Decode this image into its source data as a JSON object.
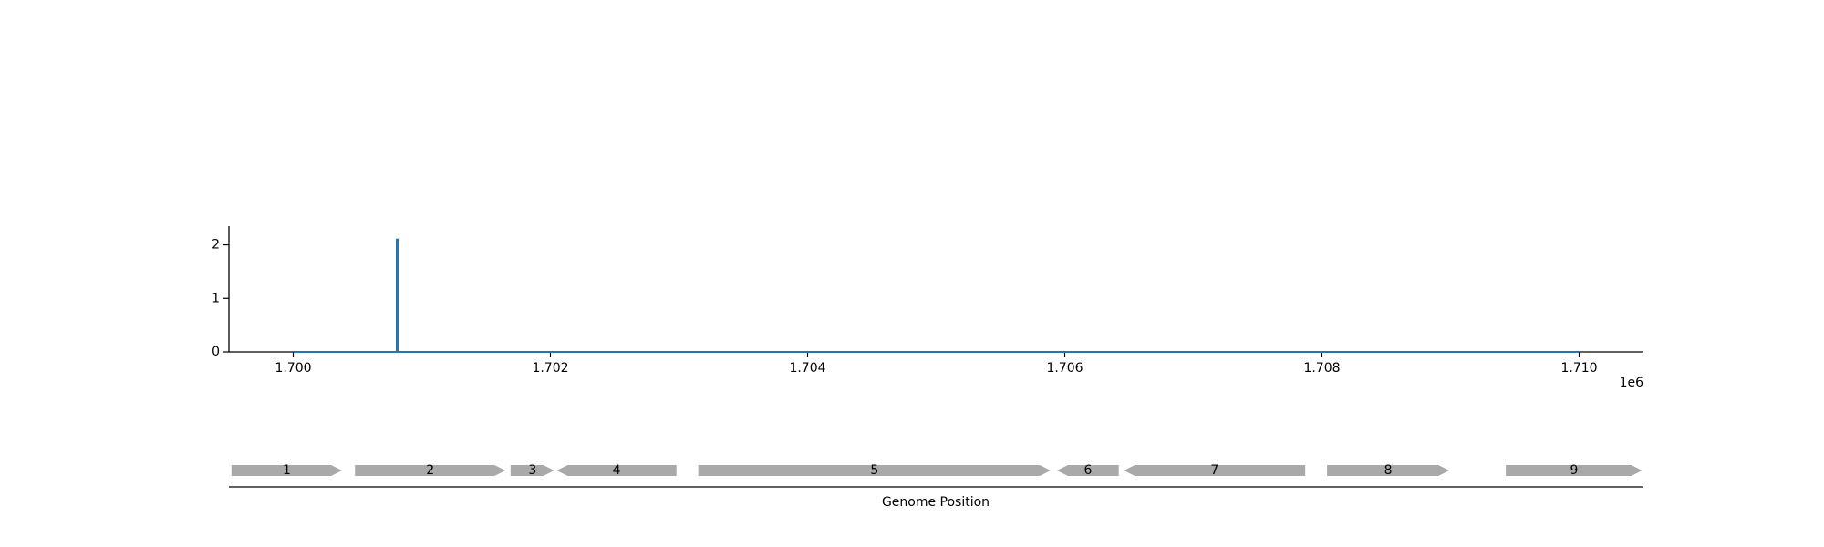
{
  "chart_data": [
    {
      "type": "line",
      "x_offset_label": "1e6",
      "xlim": [
        1699500,
        1710500
      ],
      "ylim": [
        0,
        2.35
      ],
      "x_ticks": [
        {
          "value": 1700000,
          "label": "1.700"
        },
        {
          "value": 1702000,
          "label": "1.702"
        },
        {
          "value": 1704000,
          "label": "1.704"
        },
        {
          "value": 1706000,
          "label": "1.706"
        },
        {
          "value": 1708000,
          "label": "1.708"
        },
        {
          "value": 1710000,
          "label": "1.710"
        }
      ],
      "y_ticks": [
        {
          "value": 0,
          "label": "0"
        },
        {
          "value": 1,
          "label": "1"
        },
        {
          "value": 2,
          "label": "2"
        }
      ],
      "series": [
        {
          "color": "#1f77b4",
          "x": [
            1700000,
            1700805,
            1700805,
            1700812,
            1700812,
            1710000
          ],
          "y": [
            0,
            0,
            2.1,
            2.1,
            0,
            0
          ]
        }
      ],
      "grid": false
    },
    {
      "type": "gene-track",
      "xlabel": "Genome Position",
      "xlim": [
        1699500,
        1710500
      ],
      "gene_color": "#a9a9a9",
      "genes": [
        {
          "label": "1",
          "start": 1699520,
          "end": 1700380,
          "strand": "+"
        },
        {
          "label": "2",
          "start": 1700480,
          "end": 1701650,
          "strand": "+"
        },
        {
          "label": "3",
          "start": 1701690,
          "end": 1702030,
          "strand": "+"
        },
        {
          "label": "4",
          "start": 1702050,
          "end": 1702980,
          "strand": "-"
        },
        {
          "label": "5",
          "start": 1703150,
          "end": 1705890,
          "strand": "+"
        },
        {
          "label": "6",
          "start": 1705940,
          "end": 1706420,
          "strand": "-"
        },
        {
          "label": "7",
          "start": 1706460,
          "end": 1707870,
          "strand": "-"
        },
        {
          "label": "8",
          "start": 1708040,
          "end": 1708990,
          "strand": "+"
        },
        {
          "label": "9",
          "start": 1709430,
          "end": 1710490,
          "strand": "+"
        }
      ]
    }
  ]
}
